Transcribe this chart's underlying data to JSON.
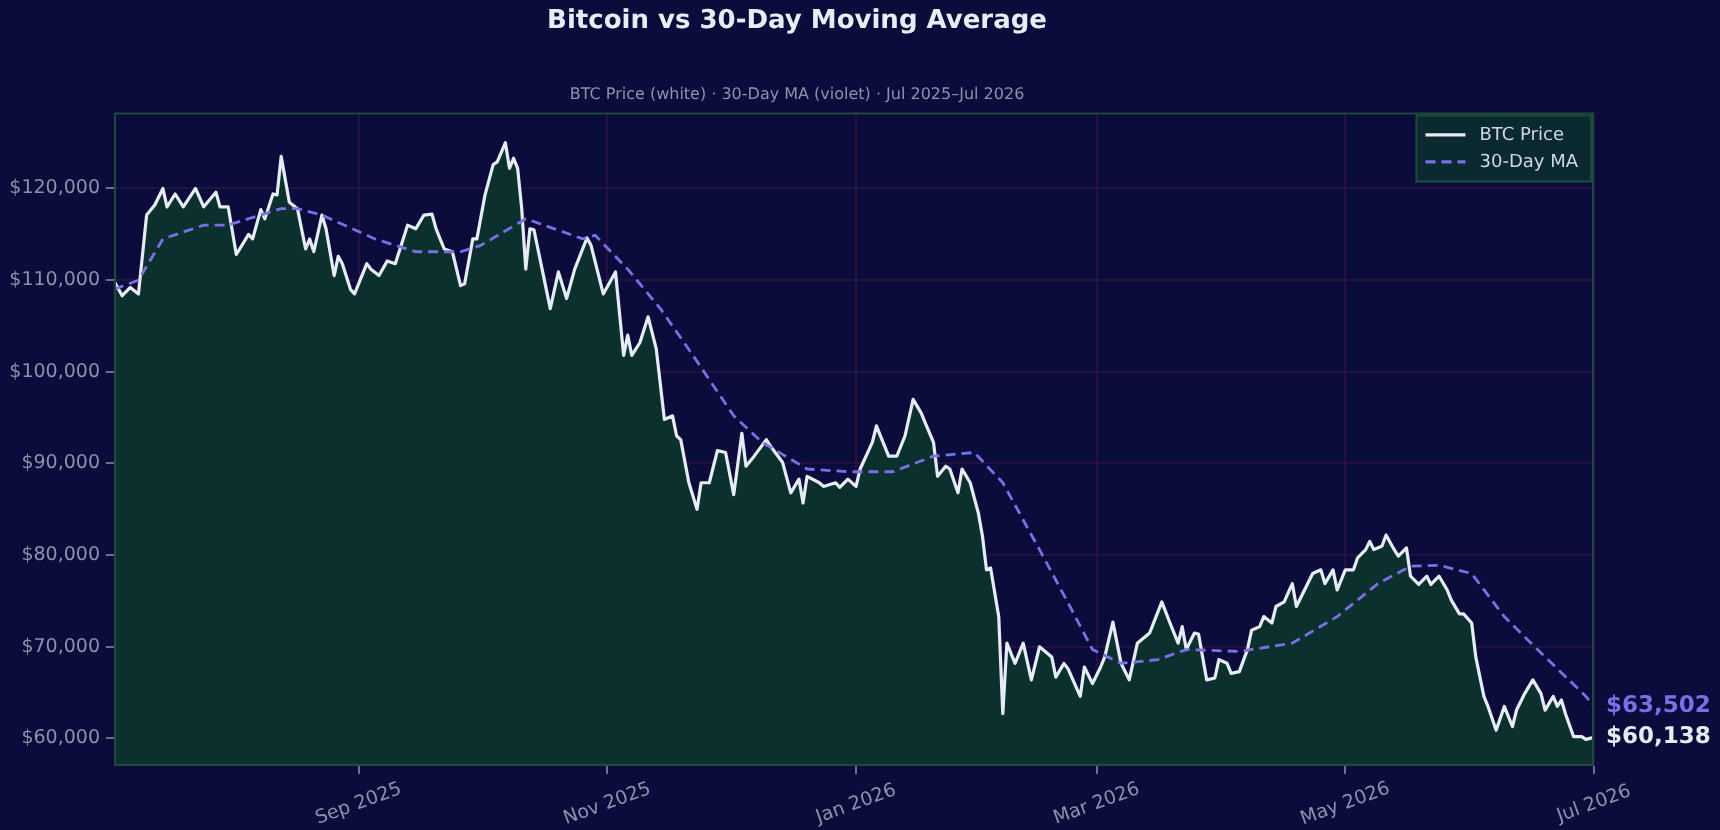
{
  "chart_data": {
    "type": "line",
    "title": "Bitcoin vs 30-Day Moving Average",
    "subtitle": "BTC Price (white) · 30-Day MA (violet) · Jul 2025–Jul 2026",
    "xlim": [
      "2025-07-03",
      "2026-07-01"
    ],
    "xticks": [
      {
        "value": "2025-09-01",
        "label": "Sep 2025"
      },
      {
        "value": "2025-11-01",
        "label": "Nov 2025"
      },
      {
        "value": "2026-01-01",
        "label": "Jan 2026"
      },
      {
        "value": "2026-03-01",
        "label": "Mar 2026"
      },
      {
        "value": "2026-05-01",
        "label": "May 2026"
      },
      {
        "value": "2026-07-01",
        "label": "Jul 2026"
      }
    ],
    "ylim": [
      57000,
      128300
    ],
    "yticks": [
      {
        "value": 60000,
        "label": "$60,000"
      },
      {
        "value": 70000,
        "label": "$70,000"
      },
      {
        "value": 80000,
        "label": "$80,000"
      },
      {
        "value": 90000,
        "label": "$90,000"
      },
      {
        "value": 100000,
        "label": "$100,000"
      },
      {
        "value": 110000,
        "label": "$110,000"
      },
      {
        "value": 120000,
        "label": "$120,000"
      }
    ],
    "grid": true,
    "legend": "top right",
    "series": [
      {
        "name": "BTC Price",
        "type": "area",
        "color": "#e6ecf5",
        "x": [
          "2025-07-03",
          "2025-07-05",
          "2025-07-07",
          "2025-07-09",
          "2025-07-11",
          "2025-07-13",
          "2025-07-15",
          "2025-07-16",
          "2025-07-18",
          "2025-07-20",
          "2025-07-23",
          "2025-07-25",
          "2025-07-28",
          "2025-07-29",
          "2025-07-31",
          "2025-08-02",
          "2025-08-05",
          "2025-08-06",
          "2025-08-08",
          "2025-08-09",
          "2025-08-11",
          "2025-08-12",
          "2025-08-13",
          "2025-08-15",
          "2025-08-17",
          "2025-08-19",
          "2025-08-20",
          "2025-08-21",
          "2025-08-23",
          "2025-08-24",
          "2025-08-26",
          "2025-08-27",
          "2025-08-28",
          "2025-08-30",
          "2025-08-31",
          "2025-09-03",
          "2025-09-04",
          "2025-09-06",
          "2025-09-08",
          "2025-09-10",
          "2025-09-13",
          "2025-09-15",
          "2025-09-17",
          "2025-09-19",
          "2025-09-20",
          "2025-09-22",
          "2025-09-24",
          "2025-09-26",
          "2025-09-27",
          "2025-09-29",
          "2025-09-30",
          "2025-10-02",
          "2025-10-04",
          "2025-10-05",
          "2025-10-07",
          "2025-10-08",
          "2025-10-09",
          "2025-10-10",
          "2025-10-11",
          "2025-10-12",
          "2025-10-13",
          "2025-10-14",
          "2025-10-16",
          "2025-10-18",
          "2025-10-20",
          "2025-10-22",
          "2025-10-24",
          "2025-10-27",
          "2025-10-28",
          "2025-10-31",
          "2025-11-03",
          "2025-11-05",
          "2025-11-06",
          "2025-11-07",
          "2025-11-09",
          "2025-11-11",
          "2025-11-13",
          "2025-11-15",
          "2025-11-17",
          "2025-11-18",
          "2025-11-19",
          "2025-11-21",
          "2025-11-23",
          "2025-11-24",
          "2025-11-26",
          "2025-11-28",
          "2025-11-30",
          "2025-12-02",
          "2025-12-04",
          "2025-12-05",
          "2025-12-07",
          "2025-12-10",
          "2025-12-11",
          "2025-12-14",
          "2025-12-16",
          "2025-12-18",
          "2025-12-19",
          "2025-12-20",
          "2025-12-23",
          "2025-12-24",
          "2025-12-27",
          "2025-12-28",
          "2025-12-30",
          "2026-01-01",
          "2026-01-02",
          "2026-01-05",
          "2026-01-06",
          "2026-01-08",
          "2026-01-09",
          "2026-01-11",
          "2026-01-13",
          "2026-01-15",
          "2026-01-17",
          "2026-01-18",
          "2026-01-20",
          "2026-01-21",
          "2026-01-23",
          "2026-01-24",
          "2026-01-26",
          "2026-01-27",
          "2026-01-29",
          "2026-01-31",
          "2026-02-01",
          "2026-02-02",
          "2026-02-03",
          "2026-02-05",
          "2026-02-06",
          "2026-02-07",
          "2026-02-09",
          "2026-02-11",
          "2026-02-13",
          "2026-02-15",
          "2026-02-18",
          "2026-02-19",
          "2026-02-21",
          "2026-02-22",
          "2026-02-25",
          "2026-02-26",
          "2026-02-28",
          "2026-03-02",
          "2026-03-03",
          "2026-03-05",
          "2026-03-07",
          "2026-03-09",
          "2026-03-11",
          "2026-03-14",
          "2026-03-17",
          "2026-03-19",
          "2026-03-21",
          "2026-03-22",
          "2026-03-23",
          "2026-03-25",
          "2026-03-26",
          "2026-03-28",
          "2026-03-30",
          "2026-03-31",
          "2026-04-02",
          "2026-04-03",
          "2026-04-05",
          "2026-04-07",
          "2026-04-08",
          "2026-04-10",
          "2026-04-11",
          "2026-04-13",
          "2026-04-14",
          "2026-04-16",
          "2026-04-18",
          "2026-04-19",
          "2026-04-21",
          "2026-04-23",
          "2026-04-25",
          "2026-04-26",
          "2026-04-28",
          "2026-04-29",
          "2026-05-01",
          "2026-05-03",
          "2026-05-04",
          "2026-05-06",
          "2026-05-07",
          "2026-05-08",
          "2026-05-10",
          "2026-05-11",
          "2026-05-13",
          "2026-05-14",
          "2026-05-16",
          "2026-05-17",
          "2026-05-19",
          "2026-05-21",
          "2026-05-22",
          "2026-05-24",
          "2026-05-26",
          "2026-05-27",
          "2026-05-29",
          "2026-05-30",
          "2026-06-01",
          "2026-06-02",
          "2026-06-04",
          "2026-06-05",
          "2026-06-07",
          "2026-06-09",
          "2026-06-11",
          "2026-06-12",
          "2026-06-14",
          "2026-06-16",
          "2026-06-18",
          "2026-06-19",
          "2026-06-21",
          "2026-06-22",
          "2026-06-23",
          "2026-06-24",
          "2026-06-26",
          "2026-06-28",
          "2026-06-29",
          "2026-07-01"
        ],
        "values": [
          109900,
          108300,
          109200,
          108500,
          117100,
          118200,
          120000,
          118000,
          119400,
          118000,
          120000,
          118000,
          119600,
          118000,
          118000,
          112800,
          115000,
          114500,
          117700,
          116700,
          119400,
          119300,
          123500,
          118500,
          117800,
          113400,
          114500,
          113100,
          117100,
          115600,
          110500,
          112600,
          111800,
          109000,
          108500,
          111800,
          111200,
          110500,
          112100,
          111800,
          116000,
          115600,
          117100,
          117200,
          115600,
          113400,
          113100,
          109400,
          109600,
          114500,
          114500,
          119300,
          122600,
          122900,
          125000,
          122200,
          123300,
          122200,
          117800,
          111200,
          115600,
          115500,
          111200,
          106900,
          110900,
          108000,
          111200,
          114600,
          113800,
          108500,
          110900,
          101800,
          104000,
          101800,
          103200,
          106000,
          102500,
          94800,
          95200,
          93000,
          92600,
          87900,
          85000,
          87900,
          87900,
          91400,
          91200,
          86600,
          93300,
          89700,
          90800,
          92600,
          91900,
          90100,
          86800,
          88300,
          85700,
          88600,
          87900,
          87500,
          87900,
          87400,
          88300,
          87500,
          89400,
          92300,
          94100,
          91900,
          90800,
          90800,
          93000,
          97000,
          95500,
          94400,
          92300,
          88600,
          89700,
          89400,
          86800,
          89400,
          87900,
          84600,
          82100,
          78400,
          78600,
          73300,
          62700,
          70400,
          68200,
          70400,
          66400,
          70000,
          68900,
          66700,
          68200,
          67600,
          64600,
          67800,
          66000,
          67800,
          68900,
          72700,
          68200,
          66400,
          70400,
          71500,
          74900,
          72600,
          70400,
          72200,
          69700,
          71500,
          71400,
          66400,
          66600,
          68600,
          68200,
          67100,
          67300,
          69700,
          71800,
          72200,
          73300,
          72600,
          74400,
          74900,
          76900,
          74400,
          76200,
          78000,
          78400,
          76900,
          78400,
          76200,
          78400,
          78400,
          79700,
          80600,
          81500,
          80600,
          81000,
          82200,
          80600,
          79900,
          80800,
          77700,
          76800,
          77700,
          76800,
          77700,
          76200,
          75100,
          73600,
          73600,
          72600,
          68900,
          64600,
          63500,
          60900,
          63500,
          61300,
          63100,
          64900,
          66400,
          64900,
          63100,
          64600,
          63500,
          64200,
          62700,
          60200,
          60200,
          59900,
          60138
        ],
        "value_labels": [
          null,
          null,
          null,
          null,
          null,
          null,
          null,
          null,
          null,
          null,
          null,
          null,
          null,
          null,
          null,
          null,
          null,
          null,
          null,
          null,
          null,
          null,
          null,
          null,
          null,
          null,
          null,
          null,
          null,
          null,
          null,
          null,
          null,
          null,
          null,
          null,
          null,
          null,
          null,
          null,
          null,
          null,
          null,
          null,
          null,
          null,
          null,
          null,
          null,
          null,
          null,
          null,
          null,
          null,
          null,
          null,
          null,
          null,
          null,
          null,
          null,
          null,
          null,
          null,
          null,
          null,
          null,
          null,
          null,
          null,
          null,
          null,
          null,
          null,
          null,
          null,
          null,
          null,
          null,
          null,
          null,
          null,
          null,
          null,
          null,
          null,
          null,
          null,
          null,
          null,
          null,
          null,
          null,
          null,
          null,
          null,
          null,
          null,
          null,
          null,
          null,
          null,
          null,
          null,
          null,
          null,
          null,
          null,
          null,
          null,
          null,
          null,
          null,
          null,
          null,
          null,
          null,
          null,
          null,
          null,
          null,
          null,
          null,
          null,
          null,
          null,
          null,
          null,
          null,
          null,
          null,
          null,
          null,
          null,
          null,
          null,
          null,
          null,
          null,
          null,
          null,
          null,
          null,
          null,
          null,
          null,
          null,
          null,
          null,
          null,
          null,
          null,
          null,
          null,
          null,
          null,
          null,
          null,
          null,
          null,
          null,
          null,
          null,
          null,
          null,
          null,
          null,
          null,
          null,
          null,
          null,
          null,
          null,
          null,
          null,
          null,
          null,
          null,
          null,
          null,
          null,
          null,
          null,
          null,
          null,
          null,
          null,
          null,
          null,
          null,
          null,
          null,
          null,
          null,
          null,
          null,
          null,
          null,
          null,
          null,
          null,
          null,
          null,
          null,
          null,
          null,
          null,
          null,
          null,
          null,
          null,
          null,
          null,
          "$60,138"
        ]
      },
      {
        "name": "30-Day MA",
        "type": "line",
        "color": "#7b6ee6",
        "line_style": "dashed",
        "x": [
          "2025-07-03",
          "2025-07-09",
          "2025-07-15",
          "2025-07-25",
          "2025-07-31",
          "2025-08-13",
          "2025-08-17",
          "2025-08-23",
          "2025-09-05",
          "2025-09-15",
          "2025-09-26",
          "2025-10-01",
          "2025-10-12",
          "2025-10-19",
          "2025-10-26",
          "2025-10-29",
          "2025-11-06",
          "2025-11-14",
          "2025-11-22",
          "2025-12-02",
          "2025-12-09",
          "2025-12-20",
          "2025-12-30",
          "2026-01-10",
          "2026-01-20",
          "2026-01-30",
          "2026-02-06",
          "2026-02-15",
          "2026-02-22",
          "2026-02-28",
          "2026-03-07",
          "2026-03-16",
          "2026-03-23",
          "2026-04-05",
          "2026-04-18",
          "2026-04-29",
          "2026-05-09",
          "2026-05-17",
          "2026-05-24",
          "2026-06-01",
          "2026-06-09",
          "2026-06-19",
          "2026-06-29",
          "2026-07-01"
        ],
        "values": [
          109000,
          110000,
          114500,
          116000,
          116000,
          117800,
          117800,
          117100,
          114500,
          113100,
          113100,
          113800,
          116700,
          115600,
          114500,
          114900,
          111200,
          106900,
          101800,
          95200,
          92300,
          89400,
          89100,
          89100,
          90800,
          91200,
          87900,
          80600,
          74800,
          69700,
          68200,
          68600,
          69700,
          69500,
          70400,
          73300,
          76900,
          78800,
          78900,
          78000,
          73300,
          68900,
          64600,
          63502
        ],
        "value_labels": [
          null,
          null,
          null,
          null,
          null,
          null,
          null,
          null,
          null,
          null,
          null,
          null,
          null,
          null,
          null,
          null,
          null,
          null,
          null,
          null,
          null,
          null,
          null,
          null,
          null,
          null,
          null,
          null,
          null,
          null,
          null,
          null,
          null,
          null,
          null,
          null,
          null,
          null,
          null,
          null,
          null,
          null,
          null,
          "$63,502"
        ]
      }
    ]
  }
}
